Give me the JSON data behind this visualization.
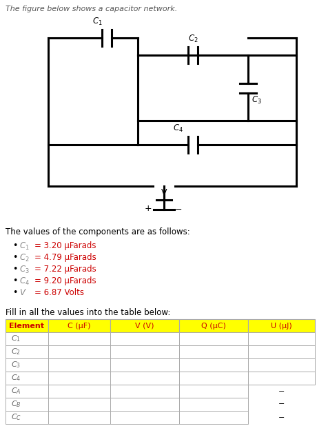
{
  "title_text": "The figure below shows a capacitor network.",
  "title_color": "#7b7b7b",
  "components_title": "The values of the components are as follows:",
  "components_title_color": "#000000",
  "bullet_label_color": "#808080",
  "bullet_value_color": "#cc0000",
  "fill_text": "Fill in all the values into the table below:",
  "fill_text_color": "#000000",
  "table_header_bg": "#ffff00",
  "table_header_text_color": "#cc0000",
  "table_border_color": "#808080",
  "table_headers": [
    "Element",
    "C (μF)",
    "V (V)",
    "Q (μC)",
    "U (μJ)"
  ],
  "circuit_line_color": "#000000",
  "circuit_lw": 2.2,
  "lw_thin": 1.5
}
